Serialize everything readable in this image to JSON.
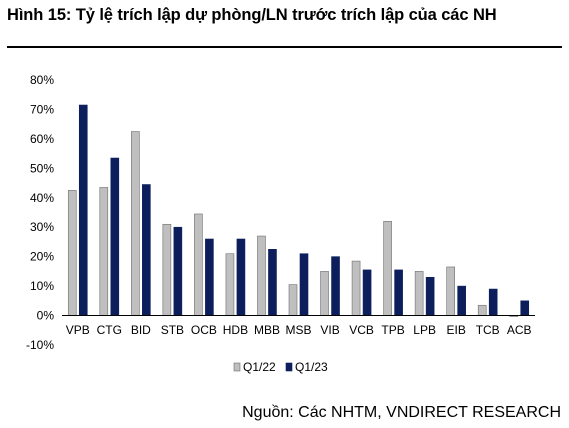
{
  "title": "Hình 15: Tỷ lệ trích lập dự phòng/LN trước trích lập của các NH",
  "source": "Nguồn: Các NHTM, VNDIRECT RESEARCH",
  "colors": {
    "q122": "#bfbfbf",
    "q123": "#0c1f5c",
    "bar_stroke": "#333333",
    "axis": "#000000"
  },
  "chart_data": {
    "type": "bar",
    "title": "",
    "xlabel": "",
    "ylabel": "",
    "y_unit": "%",
    "ylim": [
      -10,
      80
    ],
    "y_ticks": [
      -10,
      0,
      10,
      20,
      30,
      40,
      50,
      60,
      70,
      80
    ],
    "y_tick_labels": [
      "-10%",
      "0%",
      "10%",
      "20%",
      "30%",
      "40%",
      "50%",
      "60%",
      "70%",
      "80%"
    ],
    "grid": false,
    "legend_position": "bottom",
    "categories": [
      "VPB",
      "CTG",
      "BID",
      "STB",
      "OCB",
      "HDB",
      "MBB",
      "MSB",
      "VIB",
      "VCB",
      "TPB",
      "LPB",
      "EIB",
      "TCB",
      "ACB"
    ],
    "series": [
      {
        "name": "Q1/22",
        "color": "#bfbfbf",
        "values": [
          42.5,
          43.5,
          62.5,
          31,
          34.5,
          21,
          27,
          10.5,
          15,
          18.5,
          32,
          15,
          16.5,
          3.5,
          -0.3
        ]
      },
      {
        "name": "Q1/23",
        "color": "#0c1f5c",
        "values": [
          71.5,
          53.5,
          44.5,
          30,
          26,
          26,
          22.5,
          21,
          20,
          15.5,
          15.5,
          13,
          10,
          9,
          5
        ]
      }
    ]
  }
}
